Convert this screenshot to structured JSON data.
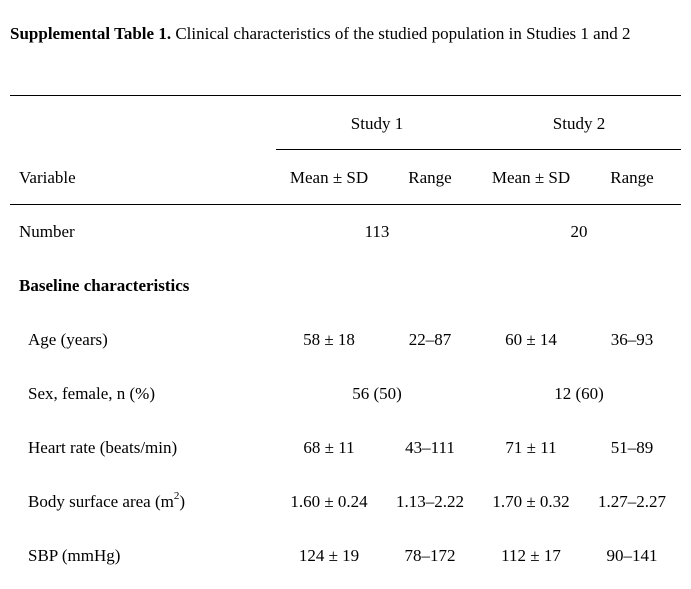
{
  "caption": {
    "label": "Supplemental Table 1.",
    "text": " Clinical characteristics of the studied population in Studies 1 and 2"
  },
  "header": {
    "study1": "Study 1",
    "study2": "Study 2",
    "variable": "Variable",
    "mean_sd": "Mean ± SD",
    "range": "Range"
  },
  "number_row": {
    "label": "Number",
    "study1": "113",
    "study2": "20"
  },
  "section": {
    "label": "Baseline characteristics"
  },
  "rows": [
    {
      "label": "Age (years)",
      "s1_mean": "58 ± 18",
      "s1_range": "22–87",
      "s2_mean": "60 ± 14",
      "s2_range": "36–93"
    },
    {
      "label": "Sex, female, n (%)",
      "s1_combined": "56 (50)",
      "s2_combined": "12 (60)"
    },
    {
      "label": "Heart rate (beats/min)",
      "s1_mean": "68 ± 11",
      "s1_range": "43–111",
      "s2_mean": "71 ± 11",
      "s2_range": "51–89"
    },
    {
      "label_prefix": "Body surface area (m",
      "label_sup": "2",
      "label_suffix": ")",
      "s1_mean": "1.60 ± 0.24",
      "s1_range": "1.13–2.22",
      "s2_mean": "1.70 ± 0.32",
      "s2_range": "1.27–2.27"
    },
    {
      "label": "SBP (mmHg)",
      "s1_mean": "124 ± 19",
      "s1_range": "78–172",
      "s2_mean": "112 ± 17",
      "s2_range": "90–141"
    }
  ]
}
